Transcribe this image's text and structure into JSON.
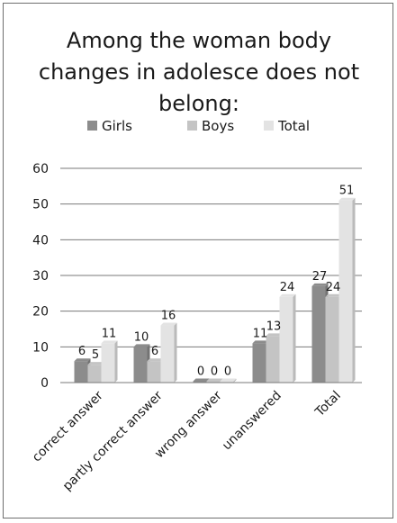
{
  "chart_data": {
    "type": "bar",
    "title": [
      "Among the woman body",
      "changes in adolesce does not",
      "belong:"
    ],
    "categories": [
      "correct answer",
      "partly correct answer",
      "wrong answer",
      "unanswered",
      "Total"
    ],
    "series": [
      {
        "name": "Girls",
        "values": [
          6,
          10,
          0,
          11,
          27
        ],
        "color": "#8c8c8c"
      },
      {
        "name": "Boys",
        "values": [
          5,
          6,
          0,
          13,
          24
        ],
        "color": "#c4c4c4"
      },
      {
        "name": "Total",
        "values": [
          11,
          16,
          0,
          24,
          51
        ],
        "color": "#e3e3e3"
      }
    ],
    "ylim": [
      0,
      60
    ],
    "yticks": [
      "0",
      "10",
      "20",
      "30",
      "40",
      "50",
      "60"
    ],
    "grid": true,
    "legend_position": "top"
  }
}
